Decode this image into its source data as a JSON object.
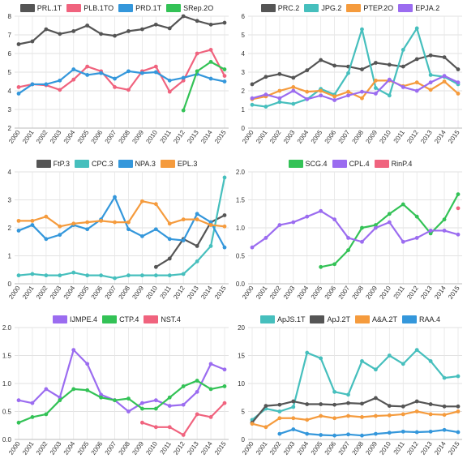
{
  "chart_data": [
    {
      "type": "line",
      "x": [
        "2000",
        "2001",
        "2002",
        "2003",
        "2004",
        "2005",
        "2006",
        "2007",
        "2008",
        "2009",
        "2010",
        "2011",
        "2012",
        "2013",
        "2014",
        "2015"
      ],
      "ylim": [
        2,
        8
      ],
      "yticks": [
        2,
        3,
        4,
        5,
        6,
        7,
        8
      ],
      "grid": true,
      "legend_position": "top",
      "series": [
        {
          "name": "PRL.1T",
          "color": "#555555",
          "values": [
            6.5,
            6.65,
            7.3,
            7.05,
            7.2,
            7.5,
            7.05,
            6.95,
            7.2,
            7.3,
            7.55,
            7.35,
            8.0,
            7.75,
            7.55,
            7.65
          ]
        },
        {
          "name": "PLB.1TO",
          "color": "#f0637e",
          "values": [
            4.2,
            4.35,
            4.3,
            4.05,
            4.6,
            5.3,
            5.05,
            4.2,
            4.05,
            5.05,
            5.3,
            3.95,
            4.55,
            6.0,
            6.2,
            4.8
          ]
        },
        {
          "name": "PRD.1T",
          "color": "#3497db",
          "values": [
            3.85,
            4.35,
            4.35,
            4.55,
            5.15,
            4.85,
            4.95,
            4.65,
            5.05,
            4.95,
            5.0,
            4.55,
            4.7,
            4.9,
            4.65,
            4.5
          ]
        },
        {
          "name": "SRep.2O",
          "color": "#33c256",
          "values": [
            null,
            null,
            null,
            null,
            null,
            null,
            null,
            null,
            null,
            null,
            null,
            null,
            2.95,
            5.05,
            5.55,
            5.15
          ]
        }
      ]
    },
    {
      "type": "line",
      "x": [
        "2000",
        "2001",
        "2002",
        "2003",
        "2004",
        "2005",
        "2006",
        "2007",
        "2008",
        "2009",
        "2010",
        "2011",
        "2012",
        "2013",
        "2014",
        "2015"
      ],
      "ylim": [
        0,
        6
      ],
      "yticks": [
        0,
        1,
        2,
        3,
        4,
        5,
        6
      ],
      "grid": true,
      "legend_position": "top",
      "series": [
        {
          "name": "PRC.2",
          "color": "#555555",
          "values": [
            2.35,
            2.75,
            2.9,
            2.7,
            3.1,
            3.65,
            3.35,
            3.3,
            3.15,
            3.5,
            3.4,
            3.3,
            3.7,
            3.9,
            3.8,
            3.15
          ]
        },
        {
          "name": "JPG.2",
          "color": "#46bfbd",
          "values": [
            1.25,
            1.15,
            1.4,
            1.3,
            1.55,
            2.1,
            1.8,
            2.95,
            5.3,
            2.15,
            1.75,
            4.2,
            5.35,
            2.85,
            2.75,
            2.35
          ]
        },
        {
          "name": "PTEP.2O",
          "color": "#f59b3d",
          "values": [
            1.55,
            1.7,
            2.0,
            2.2,
            1.95,
            2.0,
            1.7,
            1.95,
            1.6,
            2.55,
            2.55,
            2.25,
            2.45,
            2.05,
            2.5,
            1.85
          ]
        },
        {
          "name": "EPJA.2",
          "color": "#9b6cf0",
          "values": [
            1.6,
            1.8,
            1.6,
            2.0,
            1.55,
            1.75,
            1.5,
            1.75,
            1.95,
            1.85,
            2.6,
            2.2,
            2.0,
            2.45,
            2.8,
            2.45
          ]
        }
      ]
    },
    {
      "type": "line",
      "x": [
        "2000",
        "2001",
        "2002",
        "2003",
        "2004",
        "2005",
        "2006",
        "2007",
        "2008",
        "2009",
        "2010",
        "2011",
        "2012",
        "2013",
        "2014",
        "2015"
      ],
      "ylim": [
        0,
        4
      ],
      "yticks": [
        0,
        1,
        2,
        3,
        4
      ],
      "grid": true,
      "legend_position": "top",
      "series": [
        {
          "name": "FtP.3",
          "color": "#555555",
          "values": [
            null,
            null,
            null,
            null,
            null,
            null,
            null,
            null,
            null,
            null,
            0.6,
            0.9,
            1.6,
            1.35,
            2.2,
            2.45
          ]
        },
        {
          "name": "CPC.3",
          "color": "#46bfbd",
          "values": [
            0.3,
            0.35,
            0.3,
            0.3,
            0.4,
            0.3,
            0.3,
            0.2,
            0.3,
            0.3,
            0.3,
            0.3,
            0.35,
            0.8,
            1.35,
            3.8
          ]
        },
        {
          "name": "NPA.3",
          "color": "#3497db",
          "values": [
            1.9,
            2.1,
            1.6,
            1.75,
            2.1,
            1.95,
            2.3,
            3.1,
            1.95,
            1.7,
            1.95,
            1.6,
            1.55,
            2.5,
            2.2,
            1.3
          ]
        },
        {
          "name": "EPL.3",
          "color": "#f59b3d",
          "values": [
            2.25,
            2.25,
            2.4,
            2.05,
            2.15,
            2.2,
            2.25,
            2.2,
            2.2,
            2.95,
            2.85,
            2.15,
            2.3,
            2.3,
            2.1,
            2.05
          ]
        }
      ]
    },
    {
      "type": "line",
      "x": [
        "2000",
        "2001",
        "2002",
        "2003",
        "2004",
        "2005",
        "2006",
        "2007",
        "2008",
        "2009",
        "2010",
        "2011",
        "2012",
        "2013",
        "2014",
        "2015"
      ],
      "ylim": [
        0,
        2
      ],
      "yticks": [
        0,
        0.5,
        1.0,
        1.5,
        2.0
      ],
      "grid": true,
      "legend_position": "top",
      "series": [
        {
          "name": "SCG.4",
          "color": "#33c256",
          "values": [
            null,
            null,
            null,
            null,
            null,
            0.3,
            0.35,
            0.6,
            1.0,
            1.05,
            1.25,
            1.42,
            1.2,
            0.9,
            1.15,
            1.6
          ]
        },
        {
          "name": "CPL.4",
          "color": "#9b6cf0",
          "values": [
            0.65,
            0.82,
            1.05,
            1.1,
            1.2,
            1.3,
            1.15,
            0.82,
            0.75,
            1.0,
            1.1,
            0.75,
            0.82,
            0.95,
            0.95,
            0.88
          ]
        },
        {
          "name": "RinP.4",
          "color": "#f0637e",
          "values": [
            null,
            null,
            null,
            null,
            null,
            null,
            null,
            null,
            null,
            null,
            null,
            null,
            null,
            null,
            null,
            1.35
          ]
        }
      ]
    },
    {
      "type": "line",
      "x": [
        "2000",
        "2001",
        "2002",
        "2003",
        "2004",
        "2005",
        "2006",
        "2007",
        "2008",
        "2009",
        "2010",
        "2011",
        "2012",
        "2013",
        "2014",
        "2015"
      ],
      "ylim": [
        0,
        2
      ],
      "yticks": [
        0,
        0.5,
        1.0,
        1.5,
        2.0
      ],
      "grid": true,
      "legend_position": "top",
      "series": [
        {
          "name": "IJMPE.4",
          "color": "#9b6cf0",
          "values": [
            0.7,
            0.65,
            0.9,
            0.75,
            1.6,
            1.35,
            0.8,
            0.7,
            0.5,
            0.65,
            0.7,
            0.6,
            0.62,
            0.85,
            1.35,
            1.25
          ]
        },
        {
          "name": "CTP.4",
          "color": "#33c256",
          "values": [
            0.3,
            0.4,
            0.45,
            0.7,
            0.9,
            0.88,
            0.75,
            0.7,
            0.73,
            0.55,
            0.55,
            0.75,
            0.95,
            1.05,
            0.9,
            0.95
          ]
        },
        {
          "name": "NST.4",
          "color": "#f0637e",
          "values": [
            null,
            null,
            null,
            null,
            null,
            null,
            null,
            null,
            null,
            0.3,
            0.22,
            0.22,
            0.08,
            0.45,
            0.4,
            0.65
          ]
        }
      ]
    },
    {
      "type": "line",
      "x": [
        "2000",
        "2001",
        "2002",
        "2003",
        "2004",
        "2005",
        "2006",
        "2007",
        "2008",
        "2009",
        "2010",
        "2011",
        "2012",
        "2013",
        "2014",
        "2015"
      ],
      "ylim": [
        0,
        20
      ],
      "yticks": [
        0,
        5,
        10,
        15,
        20
      ],
      "grid": true,
      "legend_position": "top",
      "series": [
        {
          "name": "ApJS.1T",
          "color": "#46bfbd",
          "values": [
            3.5,
            5.5,
            5.0,
            5.8,
            15.5,
            14.5,
            8.5,
            8.0,
            14.0,
            12.5,
            15.0,
            13.5,
            16.0,
            14.0,
            11.0,
            11.3
          ]
        },
        {
          "name": "ApJ.2T",
          "color": "#555555",
          "values": [
            3.0,
            6.0,
            6.2,
            6.8,
            6.3,
            6.3,
            6.2,
            6.5,
            6.4,
            7.4,
            6.0,
            5.9,
            6.8,
            6.3,
            5.9,
            5.9
          ]
        },
        {
          "name": "A&A.2T",
          "color": "#f59b3d",
          "values": [
            2.8,
            2.2,
            3.8,
            3.8,
            3.5,
            4.2,
            3.8,
            4.2,
            4.0,
            4.2,
            4.3,
            4.5,
            5.0,
            4.5,
            4.4,
            5.0
          ]
        },
        {
          "name": "RAA.4",
          "color": "#3497db",
          "values": [
            null,
            null,
            1.0,
            1.8,
            1.0,
            0.8,
            0.7,
            0.9,
            0.7,
            1.0,
            1.2,
            1.4,
            1.3,
            1.4,
            1.7,
            1.3
          ]
        }
      ]
    }
  ]
}
